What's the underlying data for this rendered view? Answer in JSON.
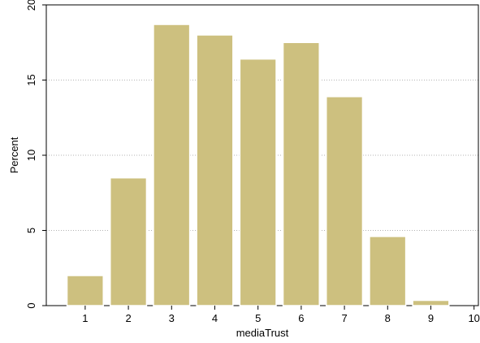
{
  "chart_data": {
    "type": "bar",
    "title": "",
    "xlabel": "mediaTrust",
    "ylabel": "Percent",
    "x": [
      1,
      2,
      3,
      4,
      5,
      6,
      7,
      8,
      9
    ],
    "values": [
      2.0,
      8.5,
      18.7,
      18.0,
      16.4,
      17.5,
      13.9,
      4.6,
      0.35
    ],
    "xticks": [
      1,
      2,
      3,
      4,
      5,
      6,
      7,
      8,
      9,
      10
    ],
    "xlim": [
      0.1,
      10.1
    ],
    "yticks": [
      0,
      5,
      10,
      15,
      20
    ],
    "ylim": [
      0,
      20
    ],
    "grid": true,
    "legend": "none",
    "colors": {
      "bar_fill": "#cdc07f",
      "bar_stroke": "#ffffff",
      "grid": "#9a9a9a",
      "axis": "#000000",
      "background": "#ffffff"
    }
  }
}
